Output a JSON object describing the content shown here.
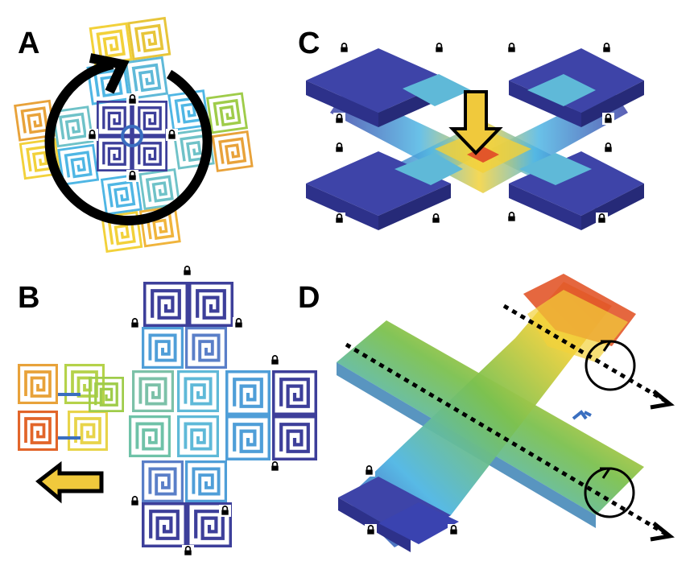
{
  "panels": {
    "A": {
      "label": "A"
    },
    "B": {
      "label": "B"
    },
    "C": {
      "label": "C"
    },
    "D": {
      "label": "D"
    }
  },
  "colors": {
    "fixed": "#3d3f9a",
    "low": "#4fb6e4",
    "mid": "#7cc14f",
    "high": "#f2d13a",
    "max": "#e2562a",
    "arrow_fill": "#f0c93c",
    "arrow_outline": "#000000"
  },
  "icons": [
    "lock-icon",
    "rotation-arrow-icon",
    "push-down-arrow-icon",
    "push-left-arrow-icon",
    "rotation-axis-icon"
  ]
}
